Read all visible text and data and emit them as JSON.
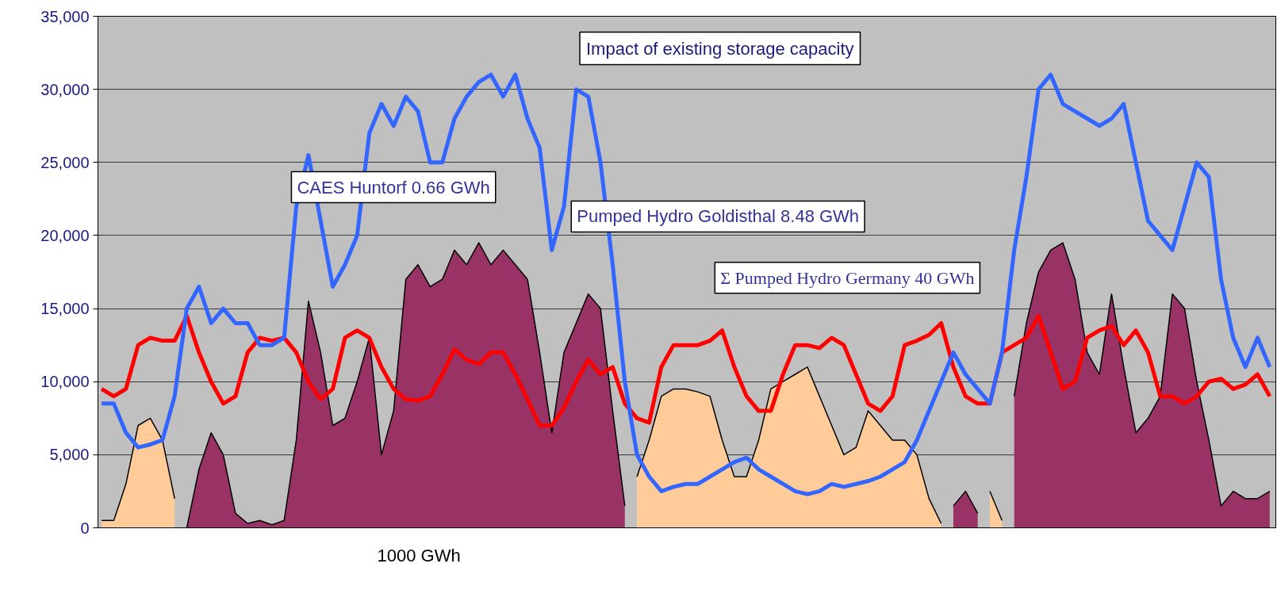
{
  "chart_data": {
    "type": "line",
    "title": "Impact of existing storage capacity",
    "categories": [
      null,
      null,
      null,
      null,
      null,
      null,
      null,
      null,
      null,
      null,
      null,
      null,
      null,
      null,
      null,
      null,
      null,
      null,
      null,
      null,
      null,
      null,
      null,
      null,
      null,
      null,
      null,
      null,
      null,
      null,
      null,
      null,
      null,
      null,
      null,
      null,
      null,
      null,
      null,
      null,
      null,
      null,
      null,
      null,
      null,
      null,
      null,
      null,
      null,
      null,
      null,
      null,
      null,
      null,
      null,
      null,
      null,
      null,
      null,
      null,
      null,
      null,
      null,
      null,
      null,
      null,
      null,
      null,
      null,
      null,
      null,
      null,
      null,
      null,
      null,
      null,
      null,
      null,
      null,
      null,
      null,
      null,
      null,
      null,
      null,
      null,
      null,
      null,
      null,
      null,
      null,
      null,
      null,
      null,
      null,
      null,
      null
    ],
    "series": [
      {
        "type": "area",
        "color": "#993366",
        "values": [
          null,
          null,
          null,
          null,
          null,
          null,
          null,
          0,
          4000,
          6500,
          5000,
          1000,
          300,
          500,
          200,
          500,
          6000,
          15500,
          12000,
          7000,
          7500,
          10000,
          13000,
          5000,
          8000,
          17000,
          18000,
          16500,
          17000,
          19000,
          18000,
          19500,
          18000,
          19000,
          18000,
          17000,
          12000,
          6500,
          12000,
          14000,
          16000,
          15000,
          8000,
          1500,
          null,
          null,
          null,
          null,
          null,
          null,
          null,
          null,
          null,
          null,
          null,
          null,
          null,
          null,
          null,
          null,
          null,
          null,
          null,
          null,
          null,
          null,
          null,
          null,
          null,
          null,
          1500,
          2500,
          1000,
          null,
          null,
          9000,
          14000,
          17500,
          19000,
          19500,
          17000,
          12000,
          10500,
          16000,
          11000,
          6500,
          7500,
          9000,
          16000,
          15000,
          10000,
          6000,
          1500,
          2500,
          2000,
          2000,
          2500
        ]
      },
      {
        "type": "area",
        "color": "#ffcc99",
        "values": [
          500,
          500,
          3000,
          7000,
          7500,
          6000,
          2000,
          null,
          null,
          null,
          null,
          null,
          null,
          null,
          null,
          null,
          null,
          null,
          null,
          null,
          null,
          null,
          null,
          null,
          null,
          null,
          null,
          null,
          null,
          null,
          null,
          null,
          null,
          null,
          null,
          null,
          null,
          null,
          null,
          null,
          null,
          null,
          null,
          null,
          3500,
          6000,
          9000,
          9500,
          9500,
          9300,
          9000,
          6000,
          3500,
          3500,
          6000,
          9500,
          10000,
          10500,
          11000,
          9000,
          7000,
          5000,
          5500,
          8000,
          7000,
          6000,
          6000,
          5000,
          2000,
          300,
          null,
          null,
          null,
          2500,
          500,
          null,
          null,
          null,
          null,
          null,
          null,
          null,
          null,
          null,
          null,
          null,
          null,
          null,
          null,
          null,
          null,
          null,
          null,
          null,
          null,
          null,
          null
        ]
      },
      {
        "color": "#ff0000",
        "values": [
          9500,
          9000,
          9500,
          12500,
          13000,
          12800,
          12800,
          14500,
          12000,
          10000,
          8500,
          9000,
          12000,
          13000,
          12800,
          13000,
          12000,
          10000,
          8800,
          9500,
          13000,
          13500,
          13000,
          11000,
          9500,
          8800,
          8700,
          9000,
          10500,
          12200,
          11500,
          11200,
          12000,
          12000,
          10500,
          8800,
          7000,
          7000,
          8200,
          10000,
          11500,
          10500,
          11000,
          8500,
          7500,
          7200,
          11000,
          12500,
          12500,
          12500,
          12800,
          13500,
          11000,
          9000,
          8000,
          8000,
          10500,
          12500,
          12500,
          12300,
          13000,
          12500,
          10500,
          8500,
          8000,
          9000,
          12500,
          12800,
          13200,
          14000,
          11000,
          9000,
          8500,
          8500,
          12000,
          12500,
          13000,
          14500,
          12000,
          9500,
          10000,
          13000,
          13500,
          13800,
          12500,
          13500,
          12000,
          9000,
          9000,
          8500,
          9000,
          10000,
          10200,
          9500,
          9800,
          10500,
          9000
        ]
      },
      {
        "color": "#3366ff",
        "values": [
          8500,
          8500,
          6500,
          5500,
          5700,
          6000,
          9000,
          15000,
          16500,
          14000,
          15000,
          14000,
          14000,
          12500,
          12500,
          13000,
          22000,
          25500,
          21000,
          16500,
          18000,
          20000,
          27000,
          29000,
          27500,
          29500,
          28500,
          25000,
          25000,
          28000,
          29500,
          30500,
          31000,
          29500,
          31000,
          28000,
          26000,
          19000,
          22000,
          30000,
          29500,
          25000,
          18000,
          10000,
          5000,
          3500,
          2500,
          2800,
          3000,
          3000,
          3500,
          4000,
          4500,
          4800,
          4000,
          3500,
          3000,
          2500,
          2300,
          2500,
          3000,
          2800,
          3000,
          3200,
          3500,
          4000,
          4500,
          6000,
          8000,
          10000,
          12000,
          10500,
          9500,
          8500,
          12000,
          19000,
          24000,
          30000,
          31000,
          29000,
          28500,
          28000,
          27500,
          28000,
          29000,
          25000,
          21000,
          20000,
          19000,
          22000,
          25000,
          24000,
          17000,
          13000,
          11000,
          13000,
          11000
        ]
      }
    ],
    "ylim": [
      0,
      35000
    ],
    "yticks": [
      {
        "value": 0,
        "label": "0"
      },
      {
        "value": 5000,
        "label": "5,000"
      },
      {
        "value": 10000,
        "label": "10,000"
      },
      {
        "value": 15000,
        "label": "15,000"
      },
      {
        "value": 20000,
        "label": "20,000"
      },
      {
        "value": 25000,
        "label": "25,000"
      },
      {
        "value": 30000,
        "label": "30,000"
      },
      {
        "value": 35000,
        "label": "35,000"
      }
    ],
    "grid": "y",
    "line_style": "solid",
    "marker": "none",
    "annotations": [
      "CAES Huntorf 0.66 GWh",
      "Pumped Hydro Goldisthal 8.48 GWh",
      "Σ Pumped Hydro Germany 40 GWh",
      "1000 GWh"
    ]
  }
}
